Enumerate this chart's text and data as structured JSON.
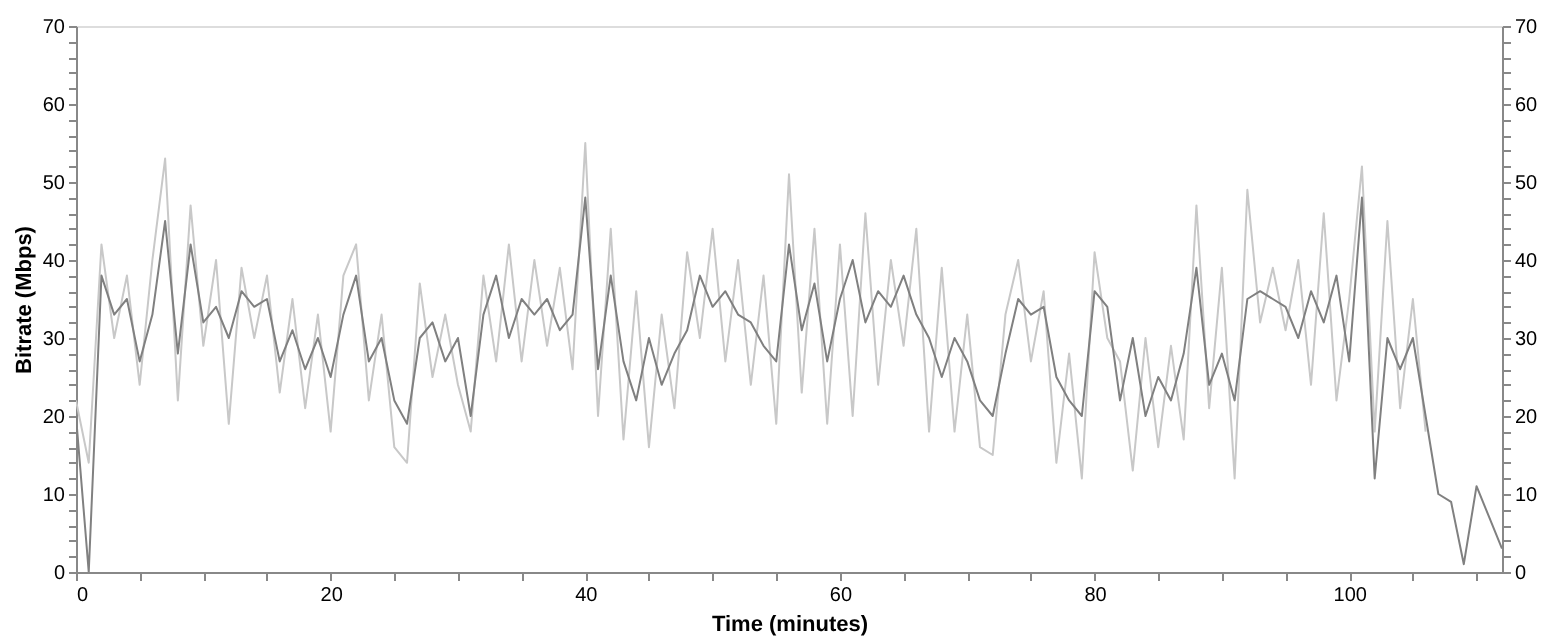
{
  "chart_data": {
    "type": "line",
    "xlabel": "Time (minutes)",
    "ylabel": "Bitrate (Mbps)",
    "x": [
      0,
      1,
      2,
      3,
      4,
      5,
      6,
      7,
      8,
      9,
      10,
      11,
      12,
      13,
      14,
      15,
      16,
      17,
      18,
      19,
      20,
      21,
      22,
      23,
      24,
      25,
      26,
      27,
      28,
      29,
      30,
      31,
      32,
      33,
      34,
      35,
      36,
      37,
      38,
      39,
      40,
      41,
      42,
      43,
      44,
      45,
      46,
      47,
      48,
      49,
      50,
      51,
      52,
      53,
      54,
      55,
      56,
      57,
      58,
      59,
      60,
      61,
      62,
      63,
      64,
      65,
      66,
      67,
      68,
      69,
      70,
      71,
      72,
      73,
      74,
      75,
      76,
      77,
      78,
      79,
      80,
      81,
      82,
      83,
      84,
      85,
      86,
      87,
      88,
      89,
      90,
      91,
      92,
      93,
      94,
      95,
      96,
      97,
      98,
      99,
      100,
      101,
      102,
      103,
      104,
      105,
      106,
      107,
      108,
      109,
      110,
      111,
      112
    ],
    "series": [
      {
        "color": "#c8c8c8",
        "values": [
          22,
          14,
          42,
          30,
          38,
          24,
          40,
          53,
          22,
          47,
          29,
          40,
          19,
          39,
          30,
          38,
          23,
          35,
          21,
          33,
          18,
          38,
          42,
          22,
          33,
          16,
          14,
          37,
          25,
          33,
          24,
          18,
          38,
          27,
          42,
          27,
          40,
          29,
          39,
          26,
          55,
          20,
          44,
          17,
          36,
          16,
          33,
          21,
          41,
          30,
          44,
          27,
          40,
          24,
          38,
          19,
          51,
          23,
          44,
          19,
          42,
          20,
          46,
          24,
          40,
          29,
          44,
          18,
          39,
          18,
          33,
          16,
          15,
          33,
          40,
          27,
          36,
          14,
          28,
          12,
          41,
          30,
          27,
          13,
          30,
          16,
          29,
          17,
          47,
          21,
          39,
          12,
          49,
          32,
          39,
          31,
          40,
          24,
          46,
          22,
          35,
          52,
          18,
          45,
          21,
          35,
          18,
          null,
          null,
          null,
          null,
          null,
          null
        ]
      },
      {
        "color": "#808080",
        "values": [
          20,
          0,
          38,
          33,
          35,
          27,
          33,
          45,
          28,
          42,
          32,
          34,
          30,
          36,
          34,
          35,
          27,
          31,
          26,
          30,
          25,
          33,
          38,
          27,
          30,
          22,
          19,
          30,
          32,
          27,
          30,
          20,
          33,
          38,
          30,
          35,
          33,
          35,
          31,
          33,
          48,
          26,
          38,
          27,
          22,
          30,
          24,
          28,
          31,
          38,
          34,
          36,
          33,
          32,
          29,
          27,
          42,
          31,
          37,
          27,
          35,
          40,
          32,
          36,
          34,
          38,
          33,
          30,
          25,
          30,
          27,
          22,
          20,
          28,
          35,
          33,
          34,
          25,
          22,
          20,
          36,
          34,
          22,
          30,
          20,
          25,
          22,
          28,
          39,
          24,
          28,
          22,
          35,
          36,
          35,
          34,
          30,
          36,
          32,
          38,
          27,
          48,
          12,
          30,
          26,
          30,
          20,
          10,
          9,
          1,
          11,
          7,
          3
        ]
      }
    ],
    "xlim": [
      0,
      112
    ],
    "xticks": [
      0,
      {
        "value": 5,
        "label": null
      },
      {
        "value": 10,
        "label": null
      },
      {
        "value": 15,
        "label": null
      },
      20,
      {
        "value": 25,
        "label": null
      },
      {
        "value": 30,
        "label": null
      },
      {
        "value": 35,
        "label": null
      },
      40,
      {
        "value": 45,
        "label": null
      },
      {
        "value": 50,
        "label": null
      },
      {
        "value": 55,
        "label": null
      },
      60,
      {
        "value": 65,
        "label": null
      },
      {
        "value": 70,
        "label": null
      },
      {
        "value": 75,
        "label": null
      },
      80,
      {
        "value": 85,
        "label": null
      },
      {
        "value": 90,
        "label": null
      },
      {
        "value": 95,
        "label": null
      },
      100,
      {
        "value": 105,
        "label": null
      },
      {
        "value": 110,
        "label": null
      }
    ],
    "ylim": [
      0,
      70
    ],
    "yticks": [
      0,
      {
        "value": 2,
        "label": null
      },
      {
        "value": 4,
        "label": null
      },
      {
        "value": 6,
        "label": null
      },
      {
        "value": 8,
        "label": null
      },
      10,
      {
        "value": 12,
        "label": null
      },
      {
        "value": 14,
        "label": null
      },
      {
        "value": 16,
        "label": null
      },
      {
        "value": 18,
        "label": null
      },
      20,
      {
        "value": 22,
        "label": null
      },
      {
        "value": 24,
        "label": null
      },
      {
        "value": 26,
        "label": null
      },
      {
        "value": 28,
        "label": null
      },
      30,
      {
        "value": 32,
        "label": null
      },
      {
        "value": 34,
        "label": null
      },
      {
        "value": 36,
        "label": null
      },
      {
        "value": 38,
        "label": null
      },
      40,
      {
        "value": 42,
        "label": null
      },
      {
        "value": 44,
        "label": null
      },
      {
        "value": 46,
        "label": null
      },
      {
        "value": 48,
        "label": null
      },
      50,
      {
        "value": 52,
        "label": null
      },
      {
        "value": 54,
        "label": null
      },
      {
        "value": 56,
        "label": null
      },
      {
        "value": 58,
        "label": null
      },
      60,
      {
        "value": 62,
        "label": null
      },
      {
        "value": 64,
        "label": null
      },
      {
        "value": 66,
        "label": null
      },
      {
        "value": 68,
        "label": null
      },
      70
    ],
    "y2lim": [
      0,
      70
    ],
    "y2ticks": [
      0,
      {
        "value": 2,
        "label": null
      },
      {
        "value": 4,
        "label": null
      },
      {
        "value": 6,
        "label": null
      },
      {
        "value": 8,
        "label": null
      },
      10,
      {
        "value": 12,
        "label": null
      },
      {
        "value": 14,
        "label": null
      },
      {
        "value": 16,
        "label": null
      },
      {
        "value": 18,
        "label": null
      },
      20,
      {
        "value": 22,
        "label": null
      },
      {
        "value": 24,
        "label": null
      },
      {
        "value": 26,
        "label": null
      },
      {
        "value": 28,
        "label": null
      },
      30,
      {
        "value": 32,
        "label": null
      },
      {
        "value": 34,
        "label": null
      },
      {
        "value": 36,
        "label": null
      },
      {
        "value": 38,
        "label": null
      },
      40,
      {
        "value": 42,
        "label": null
      },
      {
        "value": 44,
        "label": null
      },
      {
        "value": 46,
        "label": null
      },
      {
        "value": 48,
        "label": null
      },
      50,
      {
        "value": 52,
        "label": null
      },
      {
        "value": 54,
        "label": null
      },
      {
        "value": 56,
        "label": null
      },
      {
        "value": 58,
        "label": null
      },
      60,
      {
        "value": 62,
        "label": null
      },
      {
        "value": 64,
        "label": null
      },
      {
        "value": 66,
        "label": null
      },
      {
        "value": 68,
        "label": null
      },
      70
    ],
    "grid": false,
    "marker": "none",
    "line_style": "solid"
  }
}
